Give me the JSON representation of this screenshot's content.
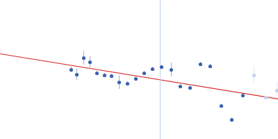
{
  "chart_data": {
    "type": "scatter",
    "xlim": [
      0,
      400
    ],
    "ylim": [
      0,
      200
    ],
    "tick_labels": false,
    "grid": false,
    "series": [
      {
        "type": "scatter",
        "marker": "circle",
        "color": "#3a62b0",
        "x": [
          102,
          110,
          120,
          129,
          139,
          150,
          160,
          171,
          183,
          195,
          207,
          219,
          232,
          246,
          259,
          273,
          288,
          302,
          318,
          333,
          349
        ],
        "values": [
          100,
          93,
          117,
          111,
          95,
          92,
          91,
          82,
          80,
          87,
          95,
          101,
          104,
          100,
          76,
          74,
          108,
          105,
          48,
          28,
          63
        ],
        "errors": [
          4,
          8,
          10,
          8,
          3,
          3,
          3,
          10,
          3,
          3,
          3,
          3,
          3,
          10,
          3,
          3,
          3,
          3,
          3,
          3,
          3
        ]
      },
      {
        "type": "scatter",
        "marker": "circle",
        "color": "#c3d1ec",
        "x": [
          365,
          382,
          398
        ],
        "values": [
          92,
          60,
          70
        ],
        "errors": [
          12,
          3,
          12
        ]
      },
      {
        "type": "line",
        "line_style": "solid",
        "color": "#d62728",
        "x": [
          0,
          400
        ],
        "values": [
          123,
          58
        ]
      },
      {
        "type": "line",
        "line_style": "solid",
        "color": "#c6d4ec",
        "x": [
          230,
          230
        ],
        "values": [
          0,
          200
        ]
      }
    ]
  }
}
